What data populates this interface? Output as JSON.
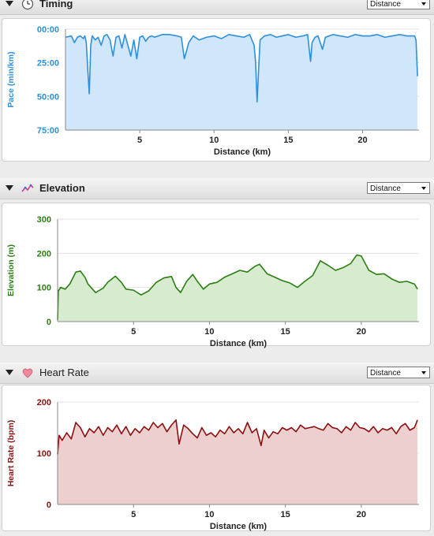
{
  "panels": [
    {
      "id": "timing",
      "title": "Timing",
      "icon": "clock-icon",
      "dropdown": "Distance",
      "color": "#2e8fdc",
      "fill": "#cfe6fb",
      "ytick_color": "#2e8fdc"
    },
    {
      "id": "elevation",
      "title": "Elevation",
      "icon": "elevation-chart-icon",
      "dropdown": "Distance",
      "color": "#2c7e12",
      "fill": "#d7ebcf",
      "ytick_color": "#2c7e12"
    },
    {
      "id": "heart",
      "title": "Heart Rate",
      "icon": "heart-icon",
      "dropdown": "Distance",
      "color": "#8a1010",
      "fill": "#eecfcf",
      "ytick_color": "#8a1010"
    }
  ],
  "chart_data": [
    {
      "type": "area",
      "xlabel": "Distance (km)",
      "ylabel": "Pace (min/km)",
      "xlim": [
        0,
        23.8
      ],
      "ylim": [
        0,
        75
      ],
      "y_inverted": true,
      "xticks": [
        5,
        10,
        15,
        20
      ],
      "yticks": [
        0,
        25,
        50,
        75
      ],
      "ytick_labels": [
        "00:00",
        "25:00",
        "50:00",
        "75:00"
      ],
      "grid": true,
      "x": [
        0,
        0.4,
        0.6,
        0.8,
        1.0,
        1.2,
        1.3,
        1.4,
        1.5,
        1.6,
        1.7,
        1.8,
        2.0,
        2.2,
        2.4,
        2.6,
        2.8,
        3.0,
        3.2,
        3.4,
        3.6,
        3.8,
        4.0,
        4.2,
        4.4,
        4.6,
        4.8,
        5.0,
        5.2,
        5.4,
        5.6,
        5.8,
        6.0,
        6.5,
        7.0,
        7.5,
        7.8,
        8.0,
        8.3,
        8.6,
        9.0,
        9.5,
        10.0,
        10.5,
        11.0,
        11.5,
        12.0,
        12.4,
        12.7,
        12.8,
        12.9,
        13.0,
        13.1,
        13.4,
        13.8,
        14.2,
        14.6,
        15.0,
        15.5,
        16.0,
        16.3,
        16.5,
        16.6,
        16.8,
        17.0,
        17.3,
        17.5,
        18.0,
        18.5,
        19.0,
        19.5,
        20.0,
        20.5,
        21.0,
        21.5,
        22.0,
        22.5,
        23.0,
        23.5,
        23.6,
        23.7
      ],
      "y": [
        6,
        5,
        10,
        6,
        5,
        7,
        5,
        10,
        30,
        48,
        12,
        5,
        8,
        6,
        12,
        5,
        4,
        8,
        20,
        6,
        5,
        14,
        4,
        12,
        20,
        8,
        22,
        6,
        5,
        9,
        6,
        5,
        6,
        4,
        4,
        5,
        6,
        22,
        10,
        5,
        8,
        6,
        5,
        7,
        4,
        5,
        6,
        4,
        12,
        25,
        54,
        30,
        8,
        5,
        4,
        6,
        5,
        4,
        6,
        5,
        4,
        24,
        10,
        6,
        5,
        15,
        6,
        4,
        5,
        6,
        4,
        5,
        5,
        4,
        6,
        5,
        4,
        5,
        5,
        8,
        35
      ]
    },
    {
      "type": "area",
      "xlabel": "Distance (km)",
      "ylabel": "Elevation (m)",
      "xlim": [
        0,
        23.8
      ],
      "ylim": [
        0,
        300
      ],
      "xticks": [
        5,
        10,
        15,
        20
      ],
      "yticks": [
        0,
        100,
        200,
        300
      ],
      "grid": true,
      "x": [
        0,
        0.05,
        0.2,
        0.5,
        0.8,
        1.2,
        1.5,
        1.8,
        2.0,
        2.5,
        3.0,
        3.3,
        3.8,
        4.2,
        4.5,
        5.0,
        5.5,
        6.0,
        6.5,
        7.0,
        7.5,
        7.8,
        8.1,
        8.5,
        8.9,
        9.2,
        9.6,
        10.0,
        10.5,
        11.0,
        11.5,
        12.0,
        12.5,
        13.0,
        13.3,
        13.8,
        14.3,
        14.8,
        15.3,
        15.8,
        16.2,
        16.8,
        17.3,
        17.8,
        18.3,
        18.8,
        19.3,
        19.7,
        20.0,
        20.5,
        21.0,
        21.5,
        22.0,
        22.5,
        23.0,
        23.5,
        23.7
      ],
      "y": [
        5,
        90,
        100,
        95,
        110,
        145,
        148,
        130,
        110,
        85,
        98,
        115,
        133,
        115,
        95,
        92,
        78,
        90,
        115,
        128,
        132,
        100,
        85,
        118,
        138,
        118,
        95,
        110,
        115,
        130,
        140,
        150,
        145,
        162,
        168,
        140,
        130,
        120,
        113,
        100,
        115,
        135,
        178,
        165,
        150,
        158,
        170,
        195,
        192,
        150,
        138,
        140,
        125,
        115,
        118,
        110,
        95
      ]
    },
    {
      "type": "area",
      "xlabel": "Distance (km)",
      "ylabel": "Heart Rate (bpm)",
      "xlim": [
        0,
        23.8
      ],
      "ylim": [
        0,
        200
      ],
      "xticks": [
        5,
        10,
        15,
        20
      ],
      "yticks": [
        0,
        100,
        200
      ],
      "grid": true,
      "x": [
        0,
        0.1,
        0.3,
        0.6,
        0.9,
        1.2,
        1.5,
        1.8,
        2.1,
        2.4,
        2.7,
        3.0,
        3.3,
        3.6,
        3.9,
        4.2,
        4.5,
        4.8,
        5.1,
        5.4,
        5.7,
        6.0,
        6.3,
        6.6,
        6.9,
        7.2,
        7.5,
        7.8,
        8.0,
        8.3,
        8.6,
        8.9,
        9.2,
        9.5,
        9.8,
        10.1,
        10.4,
        10.7,
        11.0,
        11.3,
        11.6,
        11.9,
        12.2,
        12.5,
        12.8,
        13.1,
        13.4,
        13.6,
        13.9,
        14.2,
        14.5,
        14.8,
        15.1,
        15.4,
        15.7,
        16.0,
        16.3,
        16.6,
        16.9,
        17.2,
        17.5,
        17.8,
        18.1,
        18.4,
        18.7,
        19.0,
        19.3,
        19.6,
        19.9,
        20.2,
        20.5,
        20.8,
        21.1,
        21.4,
        21.7,
        22.0,
        22.3,
        22.6,
        22.9,
        23.2,
        23.5,
        23.7
      ],
      "y": [
        98,
        135,
        125,
        140,
        128,
        160,
        150,
        132,
        148,
        140,
        152,
        135,
        150,
        142,
        155,
        138,
        152,
        135,
        148,
        140,
        152,
        145,
        160,
        150,
        158,
        142,
        155,
        165,
        118,
        155,
        148,
        138,
        130,
        150,
        135,
        140,
        132,
        145,
        138,
        152,
        140,
        148,
        138,
        160,
        140,
        148,
        115,
        145,
        130,
        142,
        138,
        150,
        145,
        150,
        142,
        155,
        148,
        150,
        152,
        148,
        145,
        158,
        150,
        148,
        140,
        152,
        145,
        160,
        150,
        148,
        142,
        152,
        140,
        148,
        145,
        150,
        138,
        152,
        158,
        145,
        150,
        165
      ]
    }
  ]
}
